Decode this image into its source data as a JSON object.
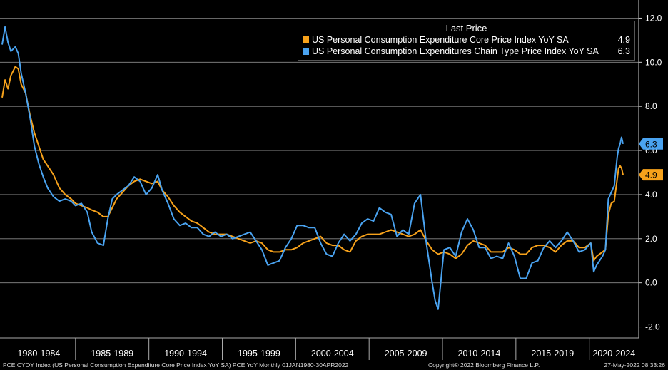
{
  "chart_data": {
    "type": "line",
    "title": "",
    "xlabel": "",
    "ylabel": "",
    "ylim": [
      -2.5,
      12.5
    ],
    "y_ticks": [
      "12.0",
      "10.0",
      "8.0",
      "6.0",
      "4.0",
      "2.0",
      "0.0",
      "-2.0"
    ],
    "y_tick_values": [
      12,
      10,
      8,
      6,
      4,
      2,
      0,
      -2
    ],
    "x_period_labels": [
      "1980-1984",
      "1985-1989",
      "1990-1994",
      "1995-1999",
      "2000-2004",
      "2005-2009",
      "2010-2014",
      "2015-2019",
      "2020-2024"
    ],
    "x_range": [
      1980.0,
      2022.3
    ],
    "grid": true,
    "legend_position": "top-right",
    "series": [
      {
        "name": "US Personal Consumption Expenditure Core Price Index YoY SA",
        "color": "#f7a21b",
        "last_value": 4.9,
        "last_label": "4.9",
        "points": [
          [
            1980.0,
            8.4
          ],
          [
            1980.2,
            9.2
          ],
          [
            1980.4,
            8.8
          ],
          [
            1980.6,
            9.4
          ],
          [
            1980.9,
            9.8
          ],
          [
            1981.1,
            9.7
          ],
          [
            1981.3,
            9.0
          ],
          [
            1981.6,
            8.6
          ],
          [
            1981.9,
            7.6
          ],
          [
            1982.2,
            6.8
          ],
          [
            1982.5,
            6.2
          ],
          [
            1982.8,
            5.6
          ],
          [
            1983.1,
            5.3
          ],
          [
            1983.5,
            4.9
          ],
          [
            1983.9,
            4.3
          ],
          [
            1984.3,
            4.0
          ],
          [
            1984.7,
            3.8
          ],
          [
            1985.0,
            3.6
          ],
          [
            1985.4,
            3.5
          ],
          [
            1985.8,
            3.4
          ],
          [
            1986.1,
            3.3
          ],
          [
            1986.5,
            3.2
          ],
          [
            1986.9,
            3.0
          ],
          [
            1987.2,
            3.0
          ],
          [
            1987.5,
            3.4
          ],
          [
            1987.8,
            3.8
          ],
          [
            1988.2,
            4.1
          ],
          [
            1988.6,
            4.4
          ],
          [
            1989.0,
            4.6
          ],
          [
            1989.4,
            4.7
          ],
          [
            1989.8,
            4.6
          ],
          [
            1990.2,
            4.5
          ],
          [
            1990.6,
            4.6
          ],
          [
            1990.9,
            4.2
          ],
          [
            1991.3,
            3.9
          ],
          [
            1991.7,
            3.5
          ],
          [
            1992.1,
            3.2
          ],
          [
            1992.5,
            3.0
          ],
          [
            1992.9,
            2.8
          ],
          [
            1993.3,
            2.7
          ],
          [
            1993.7,
            2.5
          ],
          [
            1994.1,
            2.3
          ],
          [
            1994.5,
            2.2
          ],
          [
            1994.9,
            2.2
          ],
          [
            1995.3,
            2.2
          ],
          [
            1995.7,
            2.1
          ],
          [
            1996.1,
            2.0
          ],
          [
            1996.5,
            1.9
          ],
          [
            1996.9,
            1.8
          ],
          [
            1997.3,
            1.9
          ],
          [
            1997.7,
            1.8
          ],
          [
            1998.1,
            1.5
          ],
          [
            1998.5,
            1.4
          ],
          [
            1998.9,
            1.4
          ],
          [
            1999.3,
            1.5
          ],
          [
            1999.7,
            1.5
          ],
          [
            2000.1,
            1.6
          ],
          [
            2000.5,
            1.8
          ],
          [
            2000.9,
            1.9
          ],
          [
            2001.3,
            2.0
          ],
          [
            2001.7,
            2.1
          ],
          [
            2002.1,
            1.8
          ],
          [
            2002.5,
            1.7
          ],
          [
            2002.9,
            1.7
          ],
          [
            2003.3,
            1.5
          ],
          [
            2003.7,
            1.4
          ],
          [
            2004.1,
            1.9
          ],
          [
            2004.5,
            2.1
          ],
          [
            2004.9,
            2.2
          ],
          [
            2005.3,
            2.2
          ],
          [
            2005.7,
            2.2
          ],
          [
            2006.1,
            2.3
          ],
          [
            2006.5,
            2.4
          ],
          [
            2006.9,
            2.3
          ],
          [
            2007.3,
            2.2
          ],
          [
            2007.7,
            2.1
          ],
          [
            2008.1,
            2.2
          ],
          [
            2008.5,
            2.4
          ],
          [
            2008.9,
            1.9
          ],
          [
            2009.3,
            1.5
          ],
          [
            2009.7,
            1.3
          ],
          [
            2010.1,
            1.4
          ],
          [
            2010.5,
            1.3
          ],
          [
            2010.9,
            1.1
          ],
          [
            2011.3,
            1.3
          ],
          [
            2011.7,
            1.7
          ],
          [
            2012.1,
            1.9
          ],
          [
            2012.5,
            1.8
          ],
          [
            2012.9,
            1.7
          ],
          [
            2013.3,
            1.4
          ],
          [
            2013.7,
            1.4
          ],
          [
            2014.1,
            1.4
          ],
          [
            2014.5,
            1.6
          ],
          [
            2014.9,
            1.5
          ],
          [
            2015.3,
            1.3
          ],
          [
            2015.7,
            1.3
          ],
          [
            2016.1,
            1.6
          ],
          [
            2016.5,
            1.7
          ],
          [
            2016.9,
            1.7
          ],
          [
            2017.3,
            1.6
          ],
          [
            2017.7,
            1.4
          ],
          [
            2018.1,
            1.7
          ],
          [
            2018.5,
            1.9
          ],
          [
            2018.9,
            1.9
          ],
          [
            2019.3,
            1.6
          ],
          [
            2019.7,
            1.6
          ],
          [
            2020.1,
            1.8
          ],
          [
            2020.3,
            1.0
          ],
          [
            2020.5,
            1.2
          ],
          [
            2020.9,
            1.4
          ],
          [
            2021.1,
            1.5
          ],
          [
            2021.3,
            3.1
          ],
          [
            2021.5,
            3.6
          ],
          [
            2021.7,
            3.7
          ],
          [
            2021.9,
            4.7
          ],
          [
            2022.0,
            5.2
          ],
          [
            2022.1,
            5.3
          ],
          [
            2022.2,
            5.2
          ],
          [
            2022.3,
            4.9
          ]
        ]
      },
      {
        "name": "US Personal Consumption Expenditures Chain Type Price Index YoY SA",
        "color": "#4aa3f0",
        "last_value": 6.3,
        "last_label": "6.3",
        "points": [
          [
            1980.0,
            10.8
          ],
          [
            1980.2,
            11.6
          ],
          [
            1980.4,
            10.9
          ],
          [
            1980.6,
            10.5
          ],
          [
            1980.9,
            10.7
          ],
          [
            1981.1,
            10.4
          ],
          [
            1981.3,
            9.5
          ],
          [
            1981.6,
            8.6
          ],
          [
            1981.9,
            7.5
          ],
          [
            1982.2,
            6.2
          ],
          [
            1982.5,
            5.4
          ],
          [
            1982.8,
            4.8
          ],
          [
            1983.1,
            4.3
          ],
          [
            1983.5,
            3.9
          ],
          [
            1983.9,
            3.7
          ],
          [
            1984.3,
            3.8
          ],
          [
            1984.7,
            3.7
          ],
          [
            1985.0,
            3.5
          ],
          [
            1985.4,
            3.6
          ],
          [
            1985.8,
            3.2
          ],
          [
            1986.1,
            2.3
          ],
          [
            1986.5,
            1.8
          ],
          [
            1986.9,
            1.7
          ],
          [
            1987.2,
            2.9
          ],
          [
            1987.5,
            3.8
          ],
          [
            1987.8,
            4.0
          ],
          [
            1988.2,
            4.2
          ],
          [
            1988.6,
            4.4
          ],
          [
            1989.0,
            4.8
          ],
          [
            1989.4,
            4.6
          ],
          [
            1989.8,
            4.0
          ],
          [
            1990.2,
            4.3
          ],
          [
            1990.6,
            4.9
          ],
          [
            1990.9,
            4.2
          ],
          [
            1991.3,
            3.6
          ],
          [
            1991.7,
            2.9
          ],
          [
            1992.1,
            2.6
          ],
          [
            1992.5,
            2.7
          ],
          [
            1992.9,
            2.5
          ],
          [
            1993.3,
            2.5
          ],
          [
            1993.7,
            2.2
          ],
          [
            1994.1,
            2.1
          ],
          [
            1994.5,
            2.3
          ],
          [
            1994.9,
            2.1
          ],
          [
            1995.3,
            2.2
          ],
          [
            1995.7,
            2.0
          ],
          [
            1996.1,
            2.1
          ],
          [
            1996.5,
            2.2
          ],
          [
            1996.9,
            2.3
          ],
          [
            1997.3,
            1.9
          ],
          [
            1997.7,
            1.5
          ],
          [
            1998.1,
            0.8
          ],
          [
            1998.5,
            0.9
          ],
          [
            1998.9,
            1.0
          ],
          [
            1999.3,
            1.6
          ],
          [
            1999.7,
            2.0
          ],
          [
            2000.1,
            2.6
          ],
          [
            2000.5,
            2.6
          ],
          [
            2000.9,
            2.5
          ],
          [
            2001.3,
            2.5
          ],
          [
            2001.7,
            1.8
          ],
          [
            2002.1,
            1.3
          ],
          [
            2002.5,
            1.2
          ],
          [
            2002.9,
            1.8
          ],
          [
            2003.3,
            2.2
          ],
          [
            2003.7,
            1.9
          ],
          [
            2004.1,
            2.2
          ],
          [
            2004.5,
            2.7
          ],
          [
            2004.9,
            2.9
          ],
          [
            2005.3,
            2.8
          ],
          [
            2005.7,
            3.4
          ],
          [
            2006.1,
            3.2
          ],
          [
            2006.5,
            3.1
          ],
          [
            2006.9,
            2.1
          ],
          [
            2007.3,
            2.4
          ],
          [
            2007.7,
            2.2
          ],
          [
            2008.1,
            3.6
          ],
          [
            2008.5,
            4.0
          ],
          [
            2008.9,
            1.8
          ],
          [
            2009.3,
            0.0
          ],
          [
            2009.5,
            -0.8
          ],
          [
            2009.7,
            -1.2
          ],
          [
            2010.1,
            1.5
          ],
          [
            2010.5,
            1.6
          ],
          [
            2010.9,
            1.2
          ],
          [
            2011.3,
            2.3
          ],
          [
            2011.7,
            2.9
          ],
          [
            2012.1,
            2.4
          ],
          [
            2012.5,
            1.6
          ],
          [
            2012.9,
            1.6
          ],
          [
            2013.3,
            1.1
          ],
          [
            2013.7,
            1.2
          ],
          [
            2014.1,
            1.1
          ],
          [
            2014.5,
            1.8
          ],
          [
            2014.9,
            1.2
          ],
          [
            2015.3,
            0.2
          ],
          [
            2015.7,
            0.2
          ],
          [
            2016.1,
            0.9
          ],
          [
            2016.5,
            1.0
          ],
          [
            2016.9,
            1.6
          ],
          [
            2017.3,
            1.9
          ],
          [
            2017.7,
            1.6
          ],
          [
            2018.1,
            1.9
          ],
          [
            2018.5,
            2.3
          ],
          [
            2018.9,
            1.9
          ],
          [
            2019.3,
            1.4
          ],
          [
            2019.7,
            1.5
          ],
          [
            2020.1,
            1.8
          ],
          [
            2020.3,
            0.5
          ],
          [
            2020.5,
            0.8
          ],
          [
            2020.9,
            1.2
          ],
          [
            2021.1,
            1.5
          ],
          [
            2021.3,
            3.8
          ],
          [
            2021.5,
            4.1
          ],
          [
            2021.7,
            4.4
          ],
          [
            2021.9,
            5.7
          ],
          [
            2022.0,
            6.1
          ],
          [
            2022.1,
            6.3
          ],
          [
            2022.2,
            6.6
          ],
          [
            2022.3,
            6.3
          ]
        ]
      }
    ]
  },
  "legend": {
    "title": "Last Price",
    "items": [
      {
        "name": "US Personal Consumption Expenditure Core Price Index YoY SA",
        "value": "4.9"
      },
      {
        "name": "US Personal Consumption Expenditures Chain Type Price Index YoY SA",
        "value": "6.3"
      }
    ]
  },
  "footer": {
    "left": "PCE CYOY Index (US Personal Consumption Expenditure Core Price Index YoY SA) PCE YoY  Monthly 01JAN1980-30APR2022",
    "middle": "Copyright® 2022 Bloomberg Finance L.P.",
    "right": "27-May-2022 08:33:26"
  }
}
